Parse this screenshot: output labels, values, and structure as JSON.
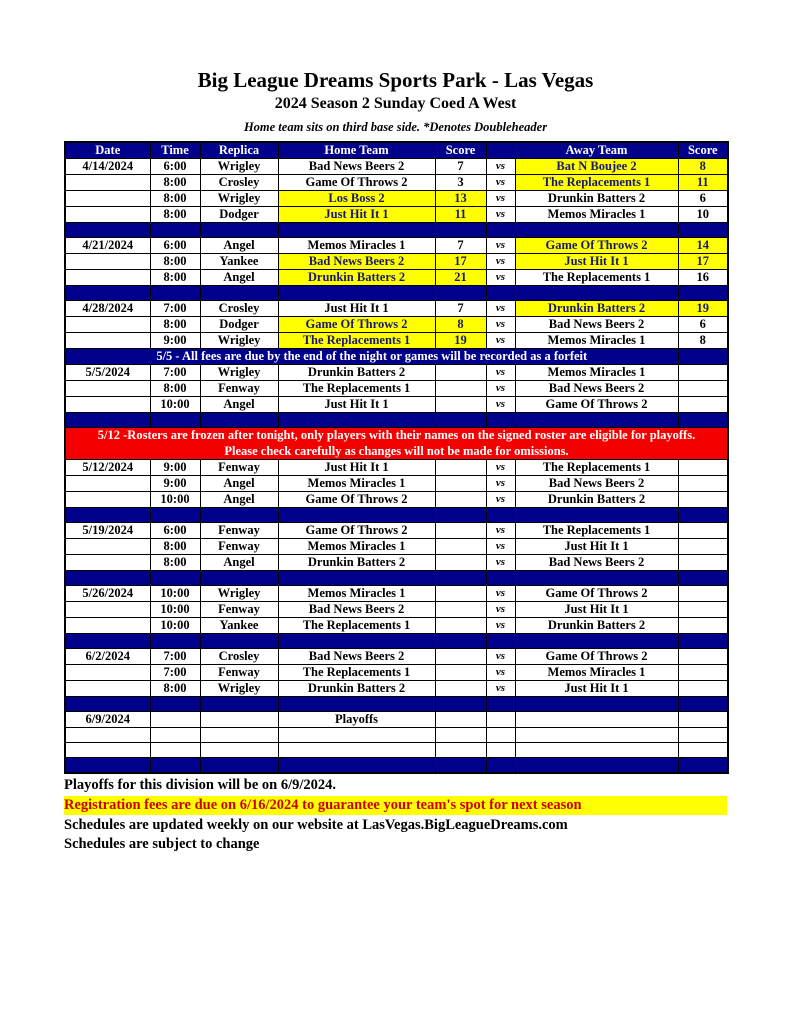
{
  "header": {
    "title": "Big League Dreams Sports Park - Las Vegas",
    "subtitle": "2024 Season 2 Sunday Coed A West",
    "note": "Home team sits on third base side.  *Denotes Doubleheader"
  },
  "colors": {
    "navy": "#00008B",
    "highlight_yellow": "#FFFF00",
    "banner_red": "#F50000",
    "highlight_text": "#191970",
    "registration_text": "#CC0000",
    "header_text": "#FFFFFF"
  },
  "table": {
    "columns": [
      "Date",
      "Time",
      "Replica",
      "Home Team",
      "Score",
      "",
      "Away Team",
      "Score"
    ],
    "vs_label": "vs",
    "rows": [
      {
        "type": "game",
        "date": "4/14/2024",
        "time": "6:00",
        "replica": "Wrigley",
        "home": "Bad News Beers 2",
        "hs": "7",
        "hhl": false,
        "away": "Bat N Boujee 2",
        "as": "8",
        "ahl": true
      },
      {
        "type": "game",
        "date": "",
        "time": "8:00",
        "replica": "Crosley",
        "home": "Game Of Throws 2",
        "hs": "3",
        "hhl": false,
        "away": "The Replacements 1",
        "as": "11",
        "ahl": true
      },
      {
        "type": "game",
        "date": "",
        "time": "8:00",
        "replica": "Wrigley",
        "home": "Los Boss 2",
        "hs": "13",
        "hhl": true,
        "away": "Drunkin Batters 2",
        "as": "6",
        "ahl": false
      },
      {
        "type": "game",
        "date": "",
        "time": "8:00",
        "replica": "Dodger",
        "home": "Just Hit It 1",
        "hs": "11",
        "hhl": true,
        "away": "Memos Miracles 1",
        "as": "10",
        "ahl": false
      },
      {
        "type": "sep"
      },
      {
        "type": "game",
        "date": "4/21/2024",
        "time": "6:00",
        "replica": "Angel",
        "home": "Memos Miracles 1",
        "hs": "7",
        "hhl": false,
        "away": "Game Of Throws 2",
        "as": "14",
        "ahl": true
      },
      {
        "type": "game",
        "date": "",
        "time": "8:00",
        "replica": "Yankee",
        "home": "Bad News Beers 2",
        "hs": "17",
        "hhl": true,
        "away": "Just Hit It 1",
        "as": "17",
        "ahl": true
      },
      {
        "type": "game",
        "date": "",
        "time": "8:00",
        "replica": "Angel",
        "home": "Drunkin Batters 2",
        "hs": "21",
        "hhl": true,
        "away": "The Replacements 1",
        "as": "16",
        "ahl": false
      },
      {
        "type": "sep"
      },
      {
        "type": "game",
        "date": "4/28/2024",
        "time": "7:00",
        "replica": "Crosley",
        "home": "Just Hit It 1",
        "hs": "7",
        "hhl": false,
        "away": "Drunkin Batters 2",
        "as": "19",
        "ahl": true
      },
      {
        "type": "game",
        "date": "",
        "time": "8:00",
        "replica": "Dodger",
        "home": "Game Of Throws 2",
        "hs": "8",
        "hhl": true,
        "away": "Bad News Beers 2",
        "as": "6",
        "ahl": false
      },
      {
        "type": "game",
        "date": "",
        "time": "9:00",
        "replica": "Wrigley",
        "home": "The Replacements 1",
        "hs": "19",
        "hhl": true,
        "away": "Memos Miracles 1",
        "as": "8",
        "ahl": false
      },
      {
        "type": "notice",
        "name": "notice-row-fees",
        "cls": "navy-banner",
        "lines": [
          "5/5 - All fees are due by the end of the night or games will be recorded as a forfeit"
        ]
      },
      {
        "type": "game",
        "date": "5/5/2024",
        "time": "7:00",
        "replica": "Wrigley",
        "home": "Drunkin Batters 2",
        "hs": "",
        "hhl": false,
        "away": "Memos Miracles 1",
        "as": "",
        "ahl": false
      },
      {
        "type": "game",
        "date": "",
        "time": "8:00",
        "replica": "Fenway",
        "home": "The Replacements 1",
        "hs": "",
        "hhl": false,
        "away": "Bad News Beers 2",
        "as": "",
        "ahl": false
      },
      {
        "type": "game",
        "date": "",
        "time": "10:00",
        "replica": "Angel",
        "home": "Just Hit It 1",
        "hs": "",
        "hhl": false,
        "away": "Game Of Throws 2",
        "as": "",
        "ahl": false
      },
      {
        "type": "sep"
      },
      {
        "type": "notice",
        "name": "notice-row-rosters",
        "cls": "red-banner",
        "lines": [
          "5/12 -Rosters are frozen after tonight, only players with their names on the signed roster are eligible for playoffs.",
          "Please check carefully as changes will not be made for omissions."
        ]
      },
      {
        "type": "game",
        "date": "5/12/2024",
        "time": "9:00",
        "replica": "Fenway",
        "home": "Just Hit It 1",
        "hs": "",
        "hhl": false,
        "away": "The Replacements 1",
        "as": "",
        "ahl": false
      },
      {
        "type": "game",
        "date": "",
        "time": "9:00",
        "replica": "Angel",
        "home": "Memos Miracles 1",
        "hs": "",
        "hhl": false,
        "away": "Bad News Beers 2",
        "as": "",
        "ahl": false
      },
      {
        "type": "game",
        "date": "",
        "time": "10:00",
        "replica": "Angel",
        "home": "Game Of Throws 2",
        "hs": "",
        "hhl": false,
        "away": "Drunkin Batters 2",
        "as": "",
        "ahl": false
      },
      {
        "type": "sep"
      },
      {
        "type": "game",
        "date": "5/19/2024",
        "time": "6:00",
        "replica": "Fenway",
        "home": "Game Of Throws 2",
        "hs": "",
        "hhl": false,
        "away": "The Replacements 1",
        "as": "",
        "ahl": false
      },
      {
        "type": "game",
        "date": "",
        "time": "8:00",
        "replica": "Fenway",
        "home": "Memos Miracles 1",
        "hs": "",
        "hhl": false,
        "away": "Just Hit It 1",
        "as": "",
        "ahl": false
      },
      {
        "type": "game",
        "date": "",
        "time": "8:00",
        "replica": "Angel",
        "home": "Drunkin Batters 2",
        "hs": "",
        "hhl": false,
        "away": "Bad News Beers 2",
        "as": "",
        "ahl": false
      },
      {
        "type": "sep"
      },
      {
        "type": "game",
        "date": "5/26/2024",
        "time": "10:00",
        "replica": "Wrigley",
        "home": "Memos Miracles 1",
        "hs": "",
        "hhl": false,
        "away": "Game Of Throws 2",
        "as": "",
        "ahl": false
      },
      {
        "type": "game",
        "date": "",
        "time": "10:00",
        "replica": "Fenway",
        "home": "Bad News Beers 2",
        "hs": "",
        "hhl": false,
        "away": "Just Hit It 1",
        "as": "",
        "ahl": false
      },
      {
        "type": "game",
        "date": "",
        "time": "10:00",
        "replica": "Yankee",
        "home": "The Replacements 1",
        "hs": "",
        "hhl": false,
        "away": "Drunkin Batters 2",
        "as": "",
        "ahl": false
      },
      {
        "type": "sep"
      },
      {
        "type": "game",
        "date": "6/2/2024",
        "time": "7:00",
        "replica": "Crosley",
        "home": "Bad News Beers 2",
        "hs": "",
        "hhl": false,
        "away": "Game Of Throws 2",
        "as": "",
        "ahl": false
      },
      {
        "type": "game",
        "date": "",
        "time": "7:00",
        "replica": "Fenway",
        "home": "The Replacements 1",
        "hs": "",
        "hhl": false,
        "away": "Memos Miracles 1",
        "as": "",
        "ahl": false
      },
      {
        "type": "game",
        "date": "",
        "time": "8:00",
        "replica": "Wrigley",
        "home": "Drunkin Batters 2",
        "hs": "",
        "hhl": false,
        "away": "Just Hit It 1",
        "as": "",
        "ahl": false
      },
      {
        "type": "sep"
      },
      {
        "type": "playoffs",
        "date": "6/9/2024",
        "label": "Playoffs"
      },
      {
        "type": "blank"
      },
      {
        "type": "blank"
      },
      {
        "type": "sep"
      }
    ]
  },
  "footer": {
    "playoffs": "Playoffs for this division will be on 6/9/2024.",
    "registration": "Registration fees are due on 6/16/2024 to guarantee your team's spot for next season",
    "website": "Schedules are updated weekly on our website at LasVegas.BigLeagueDreams.com",
    "change": "Schedules are subject to change"
  }
}
